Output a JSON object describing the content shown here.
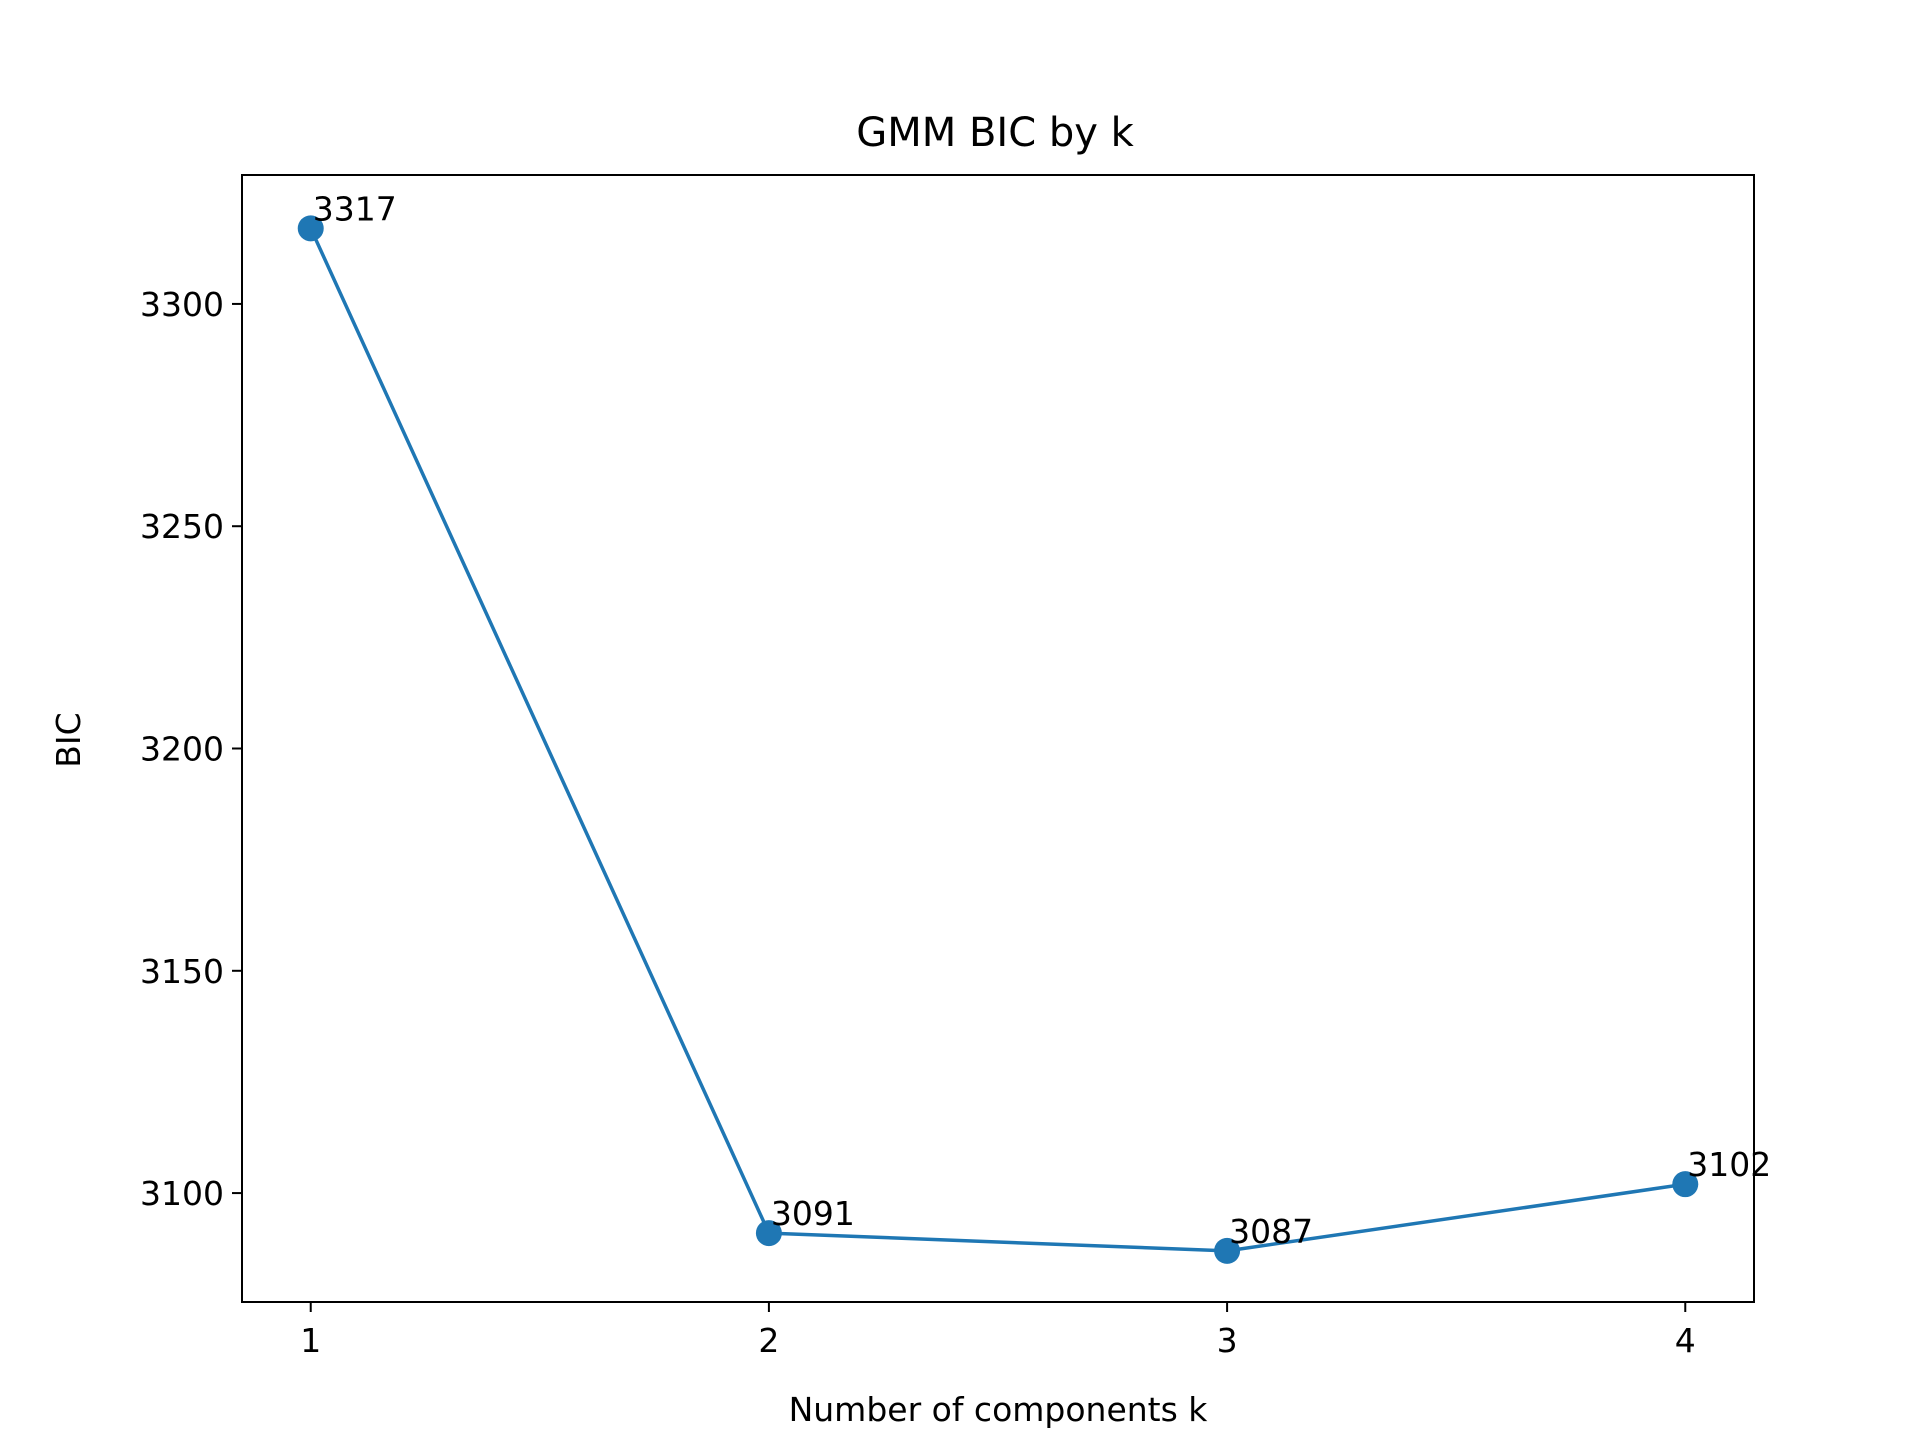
{
  "chart_data": {
    "type": "line",
    "title": "GMM BIC by k",
    "xlabel": "Number of components k",
    "ylabel": "BIC",
    "x": [
      1,
      2,
      3,
      4
    ],
    "xticks": [
      "1",
      "2",
      "3",
      "4"
    ],
    "xlim": [
      0.85,
      4.15
    ],
    "ylim": [
      3075.5,
      3329
    ],
    "yticks": [
      3100,
      3150,
      3200,
      3250,
      3300
    ],
    "series": [
      {
        "values": [
          3317,
          3091,
          3087,
          3102
        ],
        "labels": [
          "3317",
          "3091",
          "3087",
          "3102"
        ],
        "color": "#1f77b4",
        "marker": "circle"
      }
    ],
    "grid": false,
    "legend": "none"
  }
}
